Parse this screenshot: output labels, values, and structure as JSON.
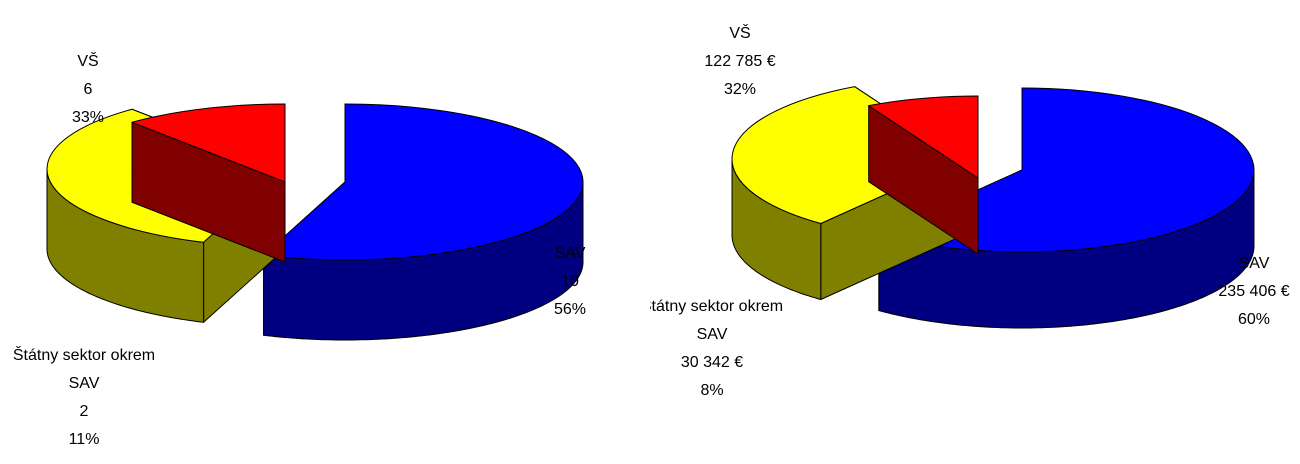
{
  "chart_data": [
    {
      "type": "pie",
      "style": "3d-exploded",
      "slices": [
        {
          "id": "sav",
          "name": "SAV",
          "value": 10,
          "percent": "56%",
          "lines": [
            "SAV",
            "10",
            "56%"
          ],
          "top": "#0000FF",
          "side": "#000080"
        },
        {
          "id": "vs",
          "name": "VŠ",
          "value": 6,
          "percent": "33%",
          "lines": [
            "VŠ",
            "6",
            "33%"
          ],
          "top": "#FFFF00",
          "side": "#808000"
        },
        {
          "id": "statny",
          "name": "Štátny sektor okrem SAV",
          "value": 2,
          "percent": "11%",
          "lines": [
            "Štátny sektor okrem",
            "SAV",
            "2",
            "11%"
          ],
          "top": "#FF0000",
          "side": "#800000"
        }
      ]
    },
    {
      "type": "pie",
      "style": "3d-exploded",
      "slices": [
        {
          "id": "sav",
          "name": "SAV",
          "value": 235406,
          "percent": "60%",
          "lines": [
            "SAV",
            "235 406 €",
            "60%"
          ],
          "top": "#0000FF",
          "side": "#000080"
        },
        {
          "id": "vs",
          "name": "VŠ",
          "value": 122785,
          "percent": "32%",
          "lines": [
            "VŠ",
            "122 785 €",
            "32%"
          ],
          "top": "#FFFF00",
          "side": "#808000"
        },
        {
          "id": "statny",
          "name": "Štátny sektor okrem SAV",
          "value": 30342,
          "percent": "8%",
          "lines": [
            "Štátny sektor okrem",
            "SAV",
            "30 342 €",
            "8%"
          ],
          "top": "#FF0000",
          "side": "#800000"
        }
      ]
    }
  ]
}
